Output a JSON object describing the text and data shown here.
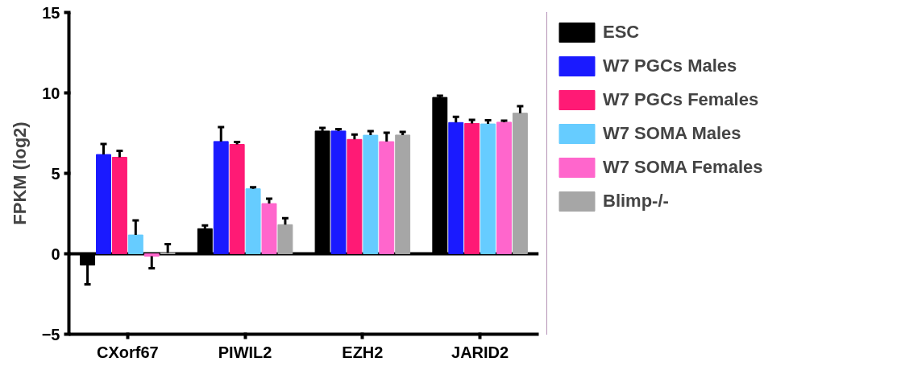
{
  "chart_data": {
    "type": "bar",
    "ylabel": "FPKM (log2)",
    "categories": [
      "CXorf67",
      "PIWIL2",
      "EZH2",
      "JARID2"
    ],
    "ylim": [
      -5,
      15
    ],
    "yticks": [
      -5,
      0,
      5,
      10,
      15
    ],
    "grid": false,
    "legend": "right",
    "ref_lines": [
      {
        "axis": "y",
        "value": 0
      }
    ],
    "series": [
      {
        "name": "ESC",
        "color": "#000000",
        "values": [
          -0.7,
          1.56,
          7.63,
          9.72
        ],
        "errors": [
          1.2,
          0.2,
          0.2,
          0.1
        ]
      },
      {
        "name": "W7 PGCs Males",
        "color": "#1a1aff",
        "values": [
          6.17,
          6.98,
          7.63,
          8.16
        ],
        "errors": [
          0.65,
          0.9,
          0.12,
          0.35
        ]
      },
      {
        "name": "W7 PGCs Females",
        "color": "#ff1a75",
        "values": [
          6.0,
          6.8,
          7.11,
          8.1
        ],
        "errors": [
          0.4,
          0.15,
          0.3,
          0.23
        ]
      },
      {
        "name": "W7 SOMA Males",
        "color": "#66ccff",
        "values": [
          1.17,
          4.04,
          7.37,
          8.07
        ],
        "errors": [
          0.9,
          0.1,
          0.25,
          0.23
        ]
      },
      {
        "name": "W7 SOMA Females",
        "color": "#ff66cc",
        "values": [
          -0.15,
          3.12,
          6.97,
          8.18
        ],
        "errors": [
          0.75,
          0.3,
          0.55,
          0.1
        ]
      },
      {
        "name": "Blimp-/-",
        "color": "#a6a6a6",
        "values": [
          0.05,
          1.81,
          7.38,
          8.74
        ],
        "errors": [
          0.55,
          0.4,
          0.2,
          0.43
        ]
      }
    ]
  }
}
